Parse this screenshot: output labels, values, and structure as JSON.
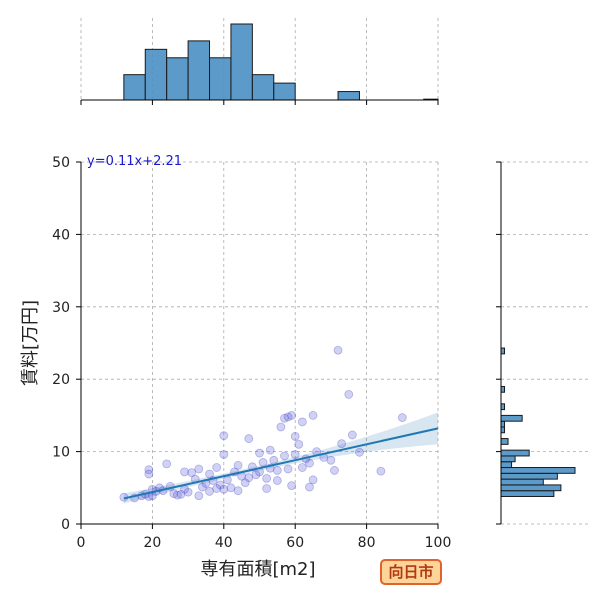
{
  "chart_data": {
    "type": "scatter",
    "xlabel": "専有面積[m2]",
    "ylabel": "賃料[万円]",
    "xlim": [
      0,
      100
    ],
    "ylim": [
      0,
      50
    ],
    "x_ticks": [
      0,
      20,
      40,
      60,
      80,
      100
    ],
    "y_ticks": [
      0,
      10,
      20,
      30,
      40,
      50
    ],
    "grid": true,
    "regression": {
      "label": "y=0.11x+2.21",
      "slope": 0.11,
      "intercept": 2.21,
      "x_range": [
        12,
        100
      ],
      "ci_half_width_at_ends": [
        0.7,
        2.2
      ]
    },
    "points": [
      [
        12,
        3.7
      ],
      [
        15,
        3.6
      ],
      [
        17,
        3.9
      ],
      [
        18,
        4.1
      ],
      [
        19,
        3.8
      ],
      [
        19,
        7.5
      ],
      [
        19,
        6.9
      ],
      [
        20,
        4.8
      ],
      [
        20,
        3.9
      ],
      [
        21,
        4.5
      ],
      [
        22,
        5.0
      ],
      [
        23,
        4.6
      ],
      [
        24,
        8.3
      ],
      [
        25,
        5.2
      ],
      [
        26,
        4.2
      ],
      [
        27,
        4.0
      ],
      [
        28,
        4.1
      ],
      [
        29,
        4.8
      ],
      [
        29,
        7.2
      ],
      [
        30,
        4.4
      ],
      [
        31,
        7.1
      ],
      [
        32,
        6.2
      ],
      [
        33,
        3.9
      ],
      [
        33,
        7.6
      ],
      [
        34,
        5.1
      ],
      [
        35,
        5.6
      ],
      [
        36,
        4.5
      ],
      [
        37,
        6.0
      ],
      [
        38,
        7.8
      ],
      [
        38,
        4.9
      ],
      [
        39,
        5.4
      ],
      [
        40,
        4.8
      ],
      [
        40,
        9.6
      ],
      [
        40,
        12.2
      ],
      [
        41,
        6.1
      ],
      [
        42,
        5.0
      ],
      [
        43,
        7.2
      ],
      [
        44,
        8.1
      ],
      [
        45,
        6.6
      ],
      [
        46,
        5.7
      ],
      [
        47,
        11.8
      ],
      [
        48,
        7.9
      ],
      [
        49,
        6.8
      ],
      [
        50,
        7.2
      ],
      [
        50,
        9.8
      ],
      [
        51,
        8.5
      ],
      [
        52,
        6.3
      ],
      [
        52,
        4.9
      ],
      [
        53,
        10.2
      ],
      [
        54,
        8.8
      ],
      [
        55,
        7.4
      ],
      [
        55,
        6.0
      ],
      [
        56,
        13.4
      ],
      [
        57,
        14.6
      ],
      [
        57,
        9.4
      ],
      [
        58,
        14.8
      ],
      [
        58,
        7.6
      ],
      [
        59,
        15.0
      ],
      [
        59,
        5.3
      ],
      [
        60,
        12.1
      ],
      [
        60,
        9.6
      ],
      [
        61,
        11.0
      ],
      [
        62,
        7.8
      ],
      [
        62,
        14.1
      ],
      [
        63,
        9.0
      ],
      [
        64,
        8.4
      ],
      [
        65,
        15.0
      ],
      [
        65,
        6.1
      ],
      [
        66,
        10.0
      ],
      [
        68,
        9.2
      ],
      [
        70,
        8.8
      ],
      [
        71,
        7.4
      ],
      [
        72,
        24.0
      ],
      [
        73,
        11.1
      ],
      [
        75,
        17.9
      ],
      [
        76,
        12.3
      ],
      [
        78,
        9.9
      ],
      [
        84,
        7.3
      ],
      [
        90,
        14.7
      ],
      [
        64,
        5.1
      ],
      [
        36,
        6.9
      ],
      [
        44,
        4.6
      ],
      [
        53,
        7.7
      ],
      [
        47,
        6.4
      ]
    ],
    "x_hist": {
      "bins": [
        12,
        18,
        24,
        30,
        36,
        42,
        48,
        54,
        60,
        66,
        72,
        78,
        84,
        90,
        96,
        100
      ],
      "counts": [
        3,
        6,
        5,
        7,
        5,
        9,
        3,
        2,
        0,
        0,
        1,
        0,
        0,
        0,
        0.1
      ]
    },
    "y_hist": {
      "bins": [
        3.8,
        4.6,
        5.4,
        6.2,
        7.0,
        7.8,
        8.6,
        9.4,
        10.2,
        11.0,
        11.8,
        12.6,
        13.4,
        14.2,
        15.0,
        15.8,
        16.6,
        17.4,
        18.2,
        19.0,
        23.5,
        24.3
      ],
      "counts": [
        15,
        17,
        12,
        16,
        21,
        3,
        4,
        8,
        0,
        2,
        0,
        1,
        1,
        6,
        0,
        1,
        0,
        0,
        1,
        0,
        1
      ]
    }
  },
  "badge": {
    "text": "向日市",
    "color": "#e0642a"
  }
}
